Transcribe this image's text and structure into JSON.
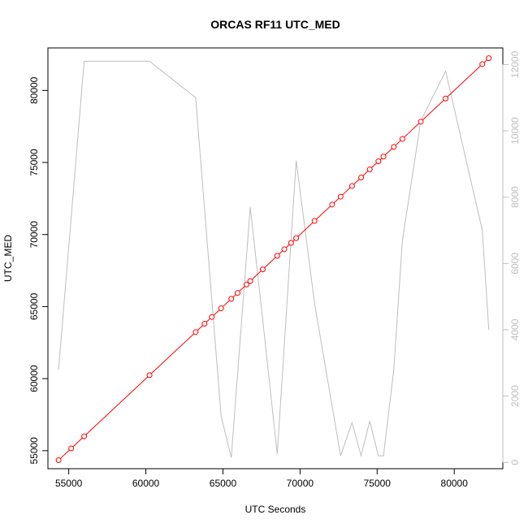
{
  "chart_data": {
    "type": "line",
    "title": "ORCAS RF11 UTC_MED",
    "xlabel": "UTC Seconds",
    "ylabel": "UTC_MED",
    "xlim": [
      53650,
      83150
    ],
    "ylim": [
      53750,
      82950
    ],
    "y2lim": [
      -190,
      12500
    ],
    "x_ticks": [
      55000,
      60000,
      65000,
      70000,
      75000,
      80000
    ],
    "y_ticks": [
      55000,
      60000,
      65000,
      70000,
      75000,
      80000
    ],
    "y2_ticks": [
      0,
      2000,
      4000,
      6000,
      8000,
      10000,
      12000
    ],
    "grid": false,
    "legend": "none",
    "colors": {
      "primary": "#ff0000",
      "secondary": "#bebebe",
      "axis": "#000000",
      "secondary_axis": "#bebebe"
    },
    "series": [
      {
        "axis": "left",
        "style": "line-with-open-circles",
        "color": "#ff0000",
        "x": [
          54340,
          55160,
          56000,
          60240,
          63230,
          63810,
          64280,
          64880,
          65540,
          65950,
          66530,
          66770,
          67580,
          68520,
          68980,
          69420,
          69750,
          70940,
          72080,
          72630,
          73370,
          73960,
          74520,
          75080,
          75410,
          76080,
          76640,
          77830,
          79440,
          81820,
          82240
        ],
        "y": [
          54340,
          55160,
          56000,
          60240,
          63230,
          63810,
          64280,
          64880,
          65540,
          65950,
          66530,
          66770,
          67580,
          68520,
          68980,
          69420,
          69750,
          70940,
          72080,
          72630,
          73370,
          73960,
          74520,
          75080,
          75410,
          76080,
          76640,
          77830,
          79440,
          81820,
          82240
        ]
      },
      {
        "axis": "right",
        "style": "line",
        "color": "#bebebe",
        "x": [
          54340,
          56000,
          60240,
          63230,
          64880,
          65540,
          66770,
          67580,
          68520,
          69750,
          70940,
          72630,
          73370,
          73960,
          74520,
          75080,
          75410,
          76080,
          76640,
          77830,
          79440,
          81820,
          82240
        ],
        "y": [
          2800,
          12100,
          12100,
          11000,
          1400,
          150,
          7700,
          4300,
          250,
          9100,
          4800,
          200,
          1200,
          200,
          1250,
          200,
          200,
          2800,
          6700,
          10300,
          11800,
          7000,
          4000
        ]
      }
    ]
  }
}
